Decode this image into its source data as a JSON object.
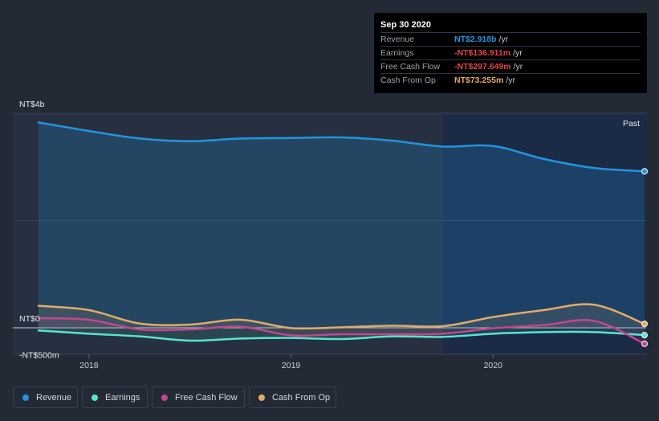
{
  "tooltip": {
    "date": "Sep 30 2020",
    "rows": [
      {
        "label": "Revenue",
        "value": "NT$2.918b",
        "unit": "/yr"
      },
      {
        "label": "Earnings",
        "value": "-NT$136.911m",
        "unit": "/yr"
      },
      {
        "label": "Free Cash Flow",
        "value": "-NT$297.649m",
        "unit": "/yr"
      },
      {
        "label": "Cash From Op",
        "value": "NT$73.255m",
        "unit": "/yr"
      }
    ]
  },
  "past_label": "Past",
  "legend": [
    {
      "label": "Revenue"
    },
    {
      "label": "Earnings"
    },
    {
      "label": "Free Cash Flow"
    },
    {
      "label": "Cash From Op"
    }
  ],
  "colors": {
    "revenue": "#2394df",
    "earnings": "#59e4d0",
    "free_cash_flow": "#c4478b",
    "cash_from_op": "#e2ac66"
  },
  "chart_data": {
    "type": "line",
    "title": "",
    "xlabel": "",
    "ylabel": "",
    "x_ticks": [
      {
        "label": "2018",
        "x": 2018.0
      },
      {
        "label": "2019",
        "x": 2019.0
      },
      {
        "label": "2020",
        "x": 2020.0
      }
    ],
    "y_ticks": [
      {
        "label": "NT$4b",
        "value": 4000
      },
      {
        "label": "NT$0",
        "value": 0
      },
      {
        "label": "-NT$500m",
        "value": -500
      }
    ],
    "ylim": [
      -500,
      4000
    ],
    "xlim": [
      2017.75,
      2020.75
    ],
    "units": "NT$ millions per year",
    "series": [
      {
        "name": "Revenue",
        "key": "revenue",
        "x": [
          2017.75,
          2018.0,
          2018.25,
          2018.5,
          2018.75,
          2019.0,
          2019.25,
          2019.5,
          2019.75,
          2020.0,
          2020.25,
          2020.5,
          2020.75
        ],
        "values": [
          3830,
          3670,
          3530,
          3480,
          3530,
          3540,
          3550,
          3490,
          3380,
          3390,
          3150,
          2980,
          2918
        ]
      },
      {
        "name": "Earnings",
        "key": "earnings",
        "x": [
          2017.75,
          2018.0,
          2018.25,
          2018.5,
          2018.75,
          2019.0,
          2019.25,
          2019.5,
          2019.75,
          2020.0,
          2020.25,
          2020.5,
          2020.75
        ],
        "values": [
          -50,
          -110,
          -160,
          -240,
          -200,
          -190,
          -210,
          -160,
          -170,
          -110,
          -80,
          -80,
          -137
        ]
      },
      {
        "name": "Free Cash Flow",
        "key": "free_cash_flow",
        "x": [
          2017.75,
          2018.0,
          2018.25,
          2018.5,
          2018.75,
          2019.0,
          2019.25,
          2019.5,
          2019.75,
          2020.0,
          2020.25,
          2020.5,
          2020.75
        ],
        "values": [
          180,
          150,
          -30,
          -30,
          20,
          -140,
          -120,
          -120,
          -110,
          -10,
          50,
          130,
          -298
        ]
      },
      {
        "name": "Cash From Op",
        "key": "cash_from_op",
        "x": [
          2017.75,
          2018.0,
          2018.25,
          2018.5,
          2018.75,
          2019.0,
          2019.25,
          2019.5,
          2019.75,
          2020.0,
          2020.25,
          2020.5,
          2020.75
        ],
        "values": [
          410,
          330,
          80,
          60,
          150,
          -5,
          10,
          40,
          30,
          200,
          330,
          430,
          73
        ]
      }
    ]
  }
}
